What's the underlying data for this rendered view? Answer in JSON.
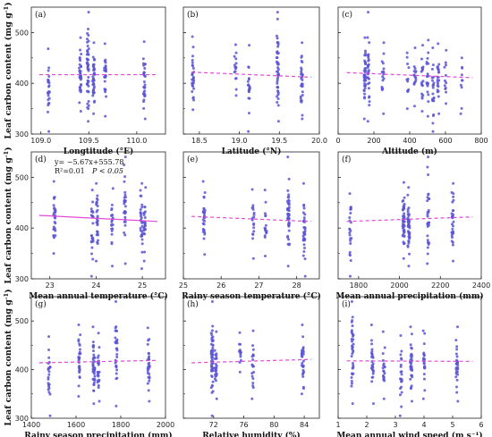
{
  "figure": {
    "ylabel_rows": [
      {
        "prefix": "Leaf carbon content (mg g",
        "sup": "-1",
        "suffix": ")"
      },
      {
        "prefix": "Leaf  carbon  content (mg g",
        "sup": "-1",
        "suffix": ")"
      },
      {
        "prefix": "Leaf  carbon  content (mg g",
        "sup": "-1",
        "suffix": ")"
      }
    ]
  },
  "chart_data": [
    {
      "panel": "(a)",
      "type": "scatter",
      "xlabel": "Longtitude (°E)",
      "xlim": [
        108.9,
        110.3
      ],
      "xticks": [
        109.0,
        109.5,
        110.0
      ],
      "xtick_labels": [
        "109.0",
        "109.5",
        "110.0"
      ],
      "ylim": [
        300,
        550
      ],
      "yticks": [
        300,
        400,
        500
      ],
      "clusters": [
        {
          "x": 109.08,
          "ymin": 305,
          "ymax": 468,
          "n": 24
        },
        {
          "x": 109.41,
          "ymin": 345,
          "ymax": 490,
          "n": 36
        },
        {
          "x": 109.49,
          "ymin": 325,
          "ymax": 540,
          "n": 48
        },
        {
          "x": 109.55,
          "ymin": 340,
          "ymax": 480,
          "n": 40
        },
        {
          "x": 109.67,
          "ymin": 335,
          "ymax": 478,
          "n": 26
        },
        {
          "x": 110.08,
          "ymin": 330,
          "ymax": 482,
          "n": 30
        }
      ],
      "fit": {
        "y_start": 417,
        "y_end": 417,
        "style": "dashed"
      }
    },
    {
      "panel": "(b)",
      "type": "scatter",
      "xlabel": "Latitude (°N)",
      "xlim": [
        18.3,
        20.0
      ],
      "xticks": [
        18.5,
        19.0,
        19.5,
        20.0
      ],
      "xtick_labels": [
        "18.5",
        "19.0",
        "19.5",
        "20.0"
      ],
      "ylim": [
        300,
        550
      ],
      "yticks": [
        300,
        400,
        500
      ],
      "clusters": [
        {
          "x": 18.42,
          "ymin": 348,
          "ymax": 492,
          "n": 30
        },
        {
          "x": 18.95,
          "ymin": 376,
          "ymax": 476,
          "n": 16
        },
        {
          "x": 19.12,
          "ymin": 305,
          "ymax": 475,
          "n": 20
        },
        {
          "x": 19.48,
          "ymin": 325,
          "ymax": 540,
          "n": 46
        },
        {
          "x": 19.78,
          "ymin": 330,
          "ymax": 480,
          "n": 30
        }
      ],
      "fit": {
        "y_start": 422,
        "y_end": 412,
        "style": "dashed"
      }
    },
    {
      "panel": "(c)",
      "type": "scatter",
      "xlabel": "Altitude (m)",
      "xlim": [
        0,
        800
      ],
      "xticks": [
        0,
        200,
        400,
        600,
        800
      ],
      "xtick_labels": [
        "0",
        "200",
        "400",
        "600",
        "800"
      ],
      "ylim": [
        300,
        550
      ],
      "yticks": [
        300,
        400,
        500
      ],
      "clusters": [
        {
          "x": 150,
          "ymin": 330,
          "ymax": 490,
          "n": 40
        },
        {
          "x": 170,
          "ymin": 325,
          "ymax": 540,
          "n": 30
        },
        {
          "x": 250,
          "ymin": 340,
          "ymax": 480,
          "n": 18
        },
        {
          "x": 390,
          "ymin": 350,
          "ymax": 460,
          "n": 12
        },
        {
          "x": 430,
          "ymin": 355,
          "ymax": 470,
          "n": 16
        },
        {
          "x": 470,
          "ymin": 345,
          "ymax": 475,
          "n": 18
        },
        {
          "x": 500,
          "ymin": 335,
          "ymax": 485,
          "n": 20
        },
        {
          "x": 530,
          "ymin": 305,
          "ymax": 470,
          "n": 22
        },
        {
          "x": 560,
          "ymin": 340,
          "ymax": 478,
          "n": 22
        },
        {
          "x": 600,
          "ymin": 360,
          "ymax": 465,
          "n": 12
        },
        {
          "x": 690,
          "ymin": 340,
          "ymax": 450,
          "n": 10
        }
      ],
      "fit": {
        "y_start": 421,
        "y_end": 411,
        "style": "dashed"
      }
    },
    {
      "panel": "(d)",
      "type": "scatter",
      "xlabel": "Mean annual temperature (°C)",
      "xlim": [
        22.6,
        25.5
      ],
      "xticks": [
        23,
        24,
        25
      ],
      "xtick_labels": [
        "23",
        "24",
        "25"
      ],
      "ylim": [
        300,
        550
      ],
      "yticks": [
        300,
        400,
        500
      ],
      "clusters": [
        {
          "x": 23.1,
          "ymin": 350,
          "ymax": 492,
          "n": 30
        },
        {
          "x": 23.92,
          "ymin": 305,
          "ymax": 475,
          "n": 24
        },
        {
          "x": 24.02,
          "ymin": 335,
          "ymax": 488,
          "n": 30
        },
        {
          "x": 24.35,
          "ymin": 325,
          "ymax": 478,
          "n": 22
        },
        {
          "x": 24.62,
          "ymin": 330,
          "ymax": 540,
          "n": 30
        },
        {
          "x": 24.98,
          "ymin": 320,
          "ymax": 488,
          "n": 30
        },
        {
          "x": 25.05,
          "ymin": 335,
          "ymax": 480,
          "n": 24
        }
      ],
      "fit": {
        "y_start": 425,
        "y_end": 413,
        "style": "solid"
      },
      "equation": "y= −5.67x+555.78",
      "r2": "R²=0.01",
      "p": "P < 0.05"
    },
    {
      "panel": "(e)",
      "type": "scatter",
      "xlabel": "Rainy season temperature (°C)",
      "xlim": [
        25,
        28.6
      ],
      "xticks": [
        25,
        26,
        27,
        28
      ],
      "xtick_labels": [
        "25",
        "26",
        "27",
        "28"
      ],
      "ylim": [
        300,
        550
      ],
      "yticks": [
        300,
        400,
        500
      ],
      "clusters": [
        {
          "x": 25.55,
          "ymin": 348,
          "ymax": 492,
          "n": 28
        },
        {
          "x": 26.85,
          "ymin": 340,
          "ymax": 476,
          "n": 18
        },
        {
          "x": 27.18,
          "ymin": 345,
          "ymax": 475,
          "n": 16
        },
        {
          "x": 27.78,
          "ymin": 325,
          "ymax": 540,
          "n": 44
        },
        {
          "x": 28.2,
          "ymin": 305,
          "ymax": 488,
          "n": 34
        }
      ],
      "fit": {
        "y_start": 423,
        "y_end": 413,
        "style": "dashed"
      }
    },
    {
      "panel": "(f)",
      "type": "scatter",
      "xlabel": "Mean annual precipitation (mm)",
      "xlim": [
        1700,
        2400
      ],
      "xticks": [
        1800,
        2000,
        2200,
        2400
      ],
      "xtick_labels": [
        "1800",
        "2000",
        "2200",
        "2400"
      ],
      "ylim": [
        300,
        550
      ],
      "yticks": [
        300,
        400,
        500
      ],
      "clusters": [
        {
          "x": 1760,
          "ymin": 305,
          "ymax": 468,
          "n": 24
        },
        {
          "x": 2020,
          "ymin": 340,
          "ymax": 490,
          "n": 44
        },
        {
          "x": 2045,
          "ymin": 325,
          "ymax": 480,
          "n": 40
        },
        {
          "x": 2140,
          "ymin": 330,
          "ymax": 540,
          "n": 30
        },
        {
          "x": 2260,
          "ymin": 335,
          "ymax": 488,
          "n": 30
        }
      ],
      "fit": {
        "y_start": 413,
        "y_end": 422,
        "style": "dashed"
      }
    },
    {
      "panel": "(g)",
      "type": "scatter",
      "xlabel": "Rainy season precipitation (mm)",
      "xlim": [
        1400,
        2000
      ],
      "xticks": [
        1400,
        1600,
        1800,
        2000
      ],
      "xtick_labels": [
        "1400",
        "1600",
        "1800",
        "2000"
      ],
      "ylim": [
        300,
        550
      ],
      "yticks": [
        300,
        400,
        500
      ],
      "clusters": [
        {
          "x": 1480,
          "ymin": 305,
          "ymax": 468,
          "n": 24
        },
        {
          "x": 1615,
          "ymin": 345,
          "ymax": 492,
          "n": 30
        },
        {
          "x": 1680,
          "ymin": 330,
          "ymax": 488,
          "n": 40
        },
        {
          "x": 1700,
          "ymin": 335,
          "ymax": 475,
          "n": 24
        },
        {
          "x": 1780,
          "ymin": 325,
          "ymax": 540,
          "n": 30
        },
        {
          "x": 1925,
          "ymin": 335,
          "ymax": 486,
          "n": 30
        }
      ],
      "fit": {
        "y_start": 414,
        "y_end": 419,
        "style": "dashed"
      }
    },
    {
      "panel": "(h)",
      "type": "scatter",
      "xlabel": "Relative humidity  (%)",
      "xlim": [
        68,
        86
      ],
      "xticks": [
        72,
        76,
        80,
        84
      ],
      "xtick_labels": [
        "72",
        "76",
        "80",
        "84"
      ],
      "ylim": [
        300,
        550
      ],
      "yticks": [
        300,
        400,
        500
      ],
      "clusters": [
        {
          "x": 71.8,
          "ymin": 305,
          "ymax": 540,
          "n": 52
        },
        {
          "x": 72.3,
          "ymin": 340,
          "ymax": 478,
          "n": 24
        },
        {
          "x": 75.5,
          "ymin": 395,
          "ymax": 476,
          "n": 14
        },
        {
          "x": 77.2,
          "ymin": 340,
          "ymax": 480,
          "n": 22
        },
        {
          "x": 83.8,
          "ymin": 350,
          "ymax": 492,
          "n": 30
        }
      ],
      "fit": {
        "y_start": 414,
        "y_end": 421,
        "style": "dashed"
      }
    },
    {
      "panel": "(i)",
      "type": "scatter",
      "xlabel": "Mean annual wind speed (m s⁻¹)",
      "xlim": [
        1,
        6
      ],
      "xticks": [
        1,
        2,
        3,
        4,
        5,
        6
      ],
      "xtick_labels": [
        "1",
        "2",
        "3",
        "4",
        "5",
        "6"
      ],
      "ylim": [
        300,
        550
      ],
      "yticks": [
        300,
        400,
        500
      ],
      "clusters": [
        {
          "x": 1.5,
          "ymin": 330,
          "ymax": 540,
          "n": 36
        },
        {
          "x": 2.2,
          "ymin": 330,
          "ymax": 492,
          "n": 26
        },
        {
          "x": 2.6,
          "ymin": 340,
          "ymax": 478,
          "n": 20
        },
        {
          "x": 3.2,
          "ymin": 305,
          "ymax": 470,
          "n": 22
        },
        {
          "x": 3.55,
          "ymin": 335,
          "ymax": 488,
          "n": 34
        },
        {
          "x": 4.0,
          "ymin": 340,
          "ymax": 480,
          "n": 22
        },
        {
          "x": 5.15,
          "ymin": 335,
          "ymax": 488,
          "n": 30
        }
      ],
      "fit": {
        "y_start": 418,
        "y_end": 417,
        "style": "dashed"
      }
    }
  ],
  "colors": {
    "points": "#5b55d6",
    "fit": "#e24ad6",
    "axes": "#222222"
  }
}
